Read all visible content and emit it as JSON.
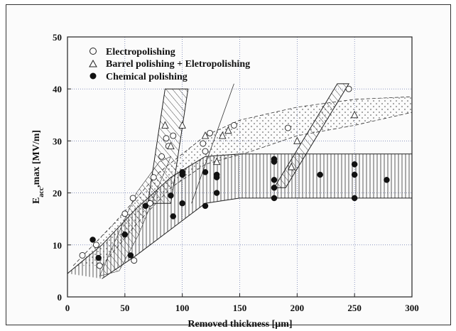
{
  "chart_data": {
    "type": "scatter",
    "title": "",
    "xlabel": "Removed thickness [μm]",
    "ylabel_main": "E",
    "ylabel_sub": "acc",
    "ylabel_rest": ",max [MV/m]",
    "xlim": [
      0,
      300
    ],
    "ylim": [
      0,
      50
    ],
    "x_ticks": [
      0,
      50,
      100,
      150,
      200,
      250,
      300
    ],
    "y_ticks": [
      0,
      10,
      20,
      30,
      40,
      50
    ],
    "grid": true,
    "legend_position": "top-left",
    "series": [
      {
        "name": "Electropolishing",
        "marker": "open-circle",
        "points": [
          [
            13,
            8
          ],
          [
            25,
            10
          ],
          [
            28,
            6
          ],
          [
            50,
            16
          ],
          [
            57,
            19
          ],
          [
            58,
            7
          ],
          [
            72,
            18
          ],
          [
            75,
            23
          ],
          [
            82,
            27
          ],
          [
            86,
            30.5
          ],
          [
            88,
            29
          ],
          [
            92,
            31
          ],
          [
            118,
            29.5
          ],
          [
            120,
            28
          ],
          [
            124,
            31.5
          ],
          [
            145,
            33
          ],
          [
            192,
            32.5
          ],
          [
            245,
            40
          ]
        ]
      },
      {
        "name": "Barrel polishing + Eletropolishing",
        "marker": "open-triangle",
        "points": [
          [
            85,
            33
          ],
          [
            90,
            29
          ],
          [
            100,
            33
          ],
          [
            120,
            31
          ],
          [
            130,
            26
          ],
          [
            135,
            31
          ],
          [
            140,
            32
          ],
          [
            195,
            25
          ],
          [
            200,
            30
          ],
          [
            250,
            35
          ]
        ]
      },
      {
        "name": "Chemical polishing",
        "marker": "filled-circle",
        "points": [
          [
            22,
            11
          ],
          [
            27,
            7.5
          ],
          [
            50,
            12
          ],
          [
            55,
            8
          ],
          [
            68,
            17.5
          ],
          [
            90,
            19.5
          ],
          [
            92,
            15.5
          ],
          [
            100,
            23.5
          ],
          [
            100,
            24
          ],
          [
            100,
            18
          ],
          [
            120,
            24
          ],
          [
            120,
            17.5
          ],
          [
            130,
            23.5
          ],
          [
            130,
            23
          ],
          [
            130,
            20
          ],
          [
            180,
            26.5
          ],
          [
            180,
            26
          ],
          [
            180,
            22.5
          ],
          [
            180,
            21
          ],
          [
            180,
            19
          ],
          [
            220,
            23.5
          ],
          [
            250,
            25.5
          ],
          [
            250,
            23.5
          ],
          [
            250,
            19
          ],
          [
            278,
            22.5
          ]
        ]
      }
    ],
    "bands": {
      "ep_upper": [
        [
          5,
          6
        ],
        [
          40,
          14
        ],
        [
          80,
          24
        ],
        [
          120,
          31
        ],
        [
          150,
          34
        ],
        [
          200,
          36.5
        ],
        [
          250,
          38
        ],
        [
          300,
          38.5
        ]
      ],
      "ep_lower": [
        [
          30,
          6
        ],
        [
          60,
          14
        ],
        [
          90,
          21
        ],
        [
          120,
          25.5
        ],
        [
          160,
          28
        ],
        [
          200,
          31
        ],
        [
          250,
          33
        ],
        [
          300,
          35.5
        ]
      ],
      "cp_upper": [
        [
          0,
          4.5
        ],
        [
          30,
          10
        ],
        [
          60,
          17
        ],
        [
          90,
          23
        ],
        [
          120,
          27
        ],
        [
          150,
          27.5
        ],
        [
          300,
          27.5
        ]
      ],
      "cp_lower": [
        [
          30,
          3.5
        ],
        [
          60,
          8
        ],
        [
          90,
          13
        ],
        [
          120,
          18
        ],
        [
          150,
          19
        ],
        [
          300,
          19
        ]
      ],
      "bp1": [
        [
          70,
          18
        ],
        [
          85,
          40
        ],
        [
          105,
          40
        ],
        [
          90,
          18
        ]
      ],
      "bp2": [
        [
          180,
          21
        ],
        [
          235,
          41
        ],
        [
          245,
          41
        ],
        [
          190,
          21
        ]
      ],
      "bp_low": [
        [
          28,
          4
        ],
        [
          60,
          20
        ],
        [
          80,
          26
        ],
        [
          90,
          27
        ],
        [
          62,
          12
        ],
        [
          45,
          5
        ]
      ]
    },
    "colors": {
      "ink": "#222222",
      "grid_major": "#4a5a9a",
      "grid_minor": "#9a9a9a",
      "frame": "#333333"
    }
  }
}
